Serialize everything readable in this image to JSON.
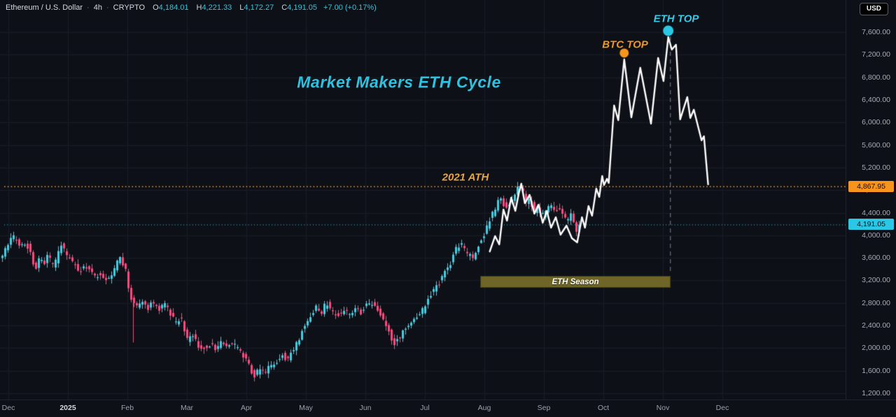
{
  "header": {
    "symbol": "Ethereum / U.S. Dollar",
    "interval": "4h",
    "exchange": "CRYPTO",
    "separator": "·",
    "ohlc": [
      {
        "k": "O",
        "v": "4,184.01"
      },
      {
        "k": "H",
        "v": "4,221.33"
      },
      {
        "k": "L",
        "v": "4,172.27"
      },
      {
        "k": "C",
        "v": "4,191.05"
      }
    ],
    "change": "+7.00 (+0.17%)",
    "currency_button": "USD"
  },
  "annotations": {
    "title": "Market Makers ETH Cycle",
    "ath_label": "2021 ATH",
    "btc_top_label": "BTC TOP",
    "eth_top_label": "ETH TOP",
    "eth_season_label": "ETH Season"
  },
  "price_axis": {
    "labels": [
      "7,600.00",
      "7,200.00",
      "6,800.00",
      "6,400.00",
      "6,000.00",
      "5,600.00",
      "5,200.00",
      "4,800.00",
      "4,400.00",
      "4,000.00",
      "3,600.00",
      "3,200.00",
      "2,800.00",
      "2,400.00",
      "2,000.00",
      "1,600.00",
      "1,200.00"
    ],
    "ath_badge": "4,867.95",
    "last_badge": "4,191.05"
  },
  "time_axis": {
    "labels": [
      "Dec",
      "2025",
      "Feb",
      "Mar",
      "Apr",
      "May",
      "Jun",
      "Jul",
      "Aug",
      "Sep",
      "Oct",
      "Nov",
      "Dec"
    ],
    "year_label_index": 1
  },
  "colors": {
    "bg": "#0d1017",
    "grid": "#171c29",
    "up": "#4cc9dc",
    "down": "#ef4f7e",
    "projection_line": "#ffffff",
    "orange": "#f7941d",
    "cyan": "#2bc8e6",
    "olive": "#6e6527",
    "dashed_vline": "#69707c"
  },
  "chart_data": {
    "type": "candlestick",
    "title": "Market Makers ETH Cycle",
    "symbol": "ETHUSD",
    "timeframe": "4h",
    "legend_position": "none",
    "grid": true,
    "y_axis": {
      "min": 1200,
      "max": 7600,
      "tick_step": 400
    },
    "x_axis": {
      "unit": "months_from_dec_2024",
      "tick_labels": [
        "Dec",
        "2025",
        "Feb",
        "Mar",
        "Apr",
        "May",
        "Jun",
        "Jul",
        "Aug",
        "Sep",
        "Oct",
        "Nov",
        "Dec"
      ]
    },
    "ath_price": 4867.95,
    "last_price": 4191.05,
    "price_path": [
      [
        -0.12,
        3564
      ],
      [
        -0.05,
        3713
      ],
      [
        0.05,
        3899
      ],
      [
        0.14,
        3986
      ],
      [
        0.21,
        3812
      ],
      [
        0.31,
        3862
      ],
      [
        0.4,
        3688
      ],
      [
        0.47,
        3367
      ],
      [
        0.54,
        3614
      ],
      [
        0.61,
        3466
      ],
      [
        0.68,
        3639
      ],
      [
        0.78,
        3416
      ],
      [
        0.89,
        3837
      ],
      [
        0.99,
        3664
      ],
      [
        1.11,
        3490
      ],
      [
        1.22,
        3367
      ],
      [
        1.34,
        3466
      ],
      [
        1.46,
        3243
      ],
      [
        1.58,
        3342
      ],
      [
        1.69,
        3169
      ],
      [
        1.79,
        3391
      ],
      [
        1.88,
        3589
      ],
      [
        1.98,
        3441
      ],
      [
        2.07,
        2871
      ],
      [
        2.16,
        2748
      ],
      [
        2.26,
        2847
      ],
      [
        2.35,
        2698
      ],
      [
        2.45,
        2822
      ],
      [
        2.54,
        2674
      ],
      [
        2.64,
        2773
      ],
      [
        2.73,
        2624
      ],
      [
        2.82,
        2451
      ],
      [
        2.92,
        2537
      ],
      [
        3.01,
        2141
      ],
      [
        3.11,
        2253
      ],
      [
        3.2,
        2055
      ],
      [
        3.29,
        1980
      ],
      [
        3.39,
        2079
      ],
      [
        3.48,
        2005
      ],
      [
        3.58,
        2079
      ],
      [
        3.67,
        2017
      ],
      [
        3.76,
        2104
      ],
      [
        3.86,
        2005
      ],
      [
        3.95,
        1881
      ],
      [
        4.05,
        1732
      ],
      [
        4.14,
        1485
      ],
      [
        4.24,
        1633
      ],
      [
        4.33,
        1571
      ],
      [
        4.42,
        1683
      ],
      [
        4.52,
        1757
      ],
      [
        4.61,
        1881
      ],
      [
        4.71,
        1806
      ],
      [
        4.8,
        1980
      ],
      [
        4.89,
        2129
      ],
      [
        4.99,
        2401
      ],
      [
        5.08,
        2574
      ],
      [
        5.18,
        2723
      ],
      [
        5.27,
        2624
      ],
      [
        5.36,
        2797
      ],
      [
        5.46,
        2648
      ],
      [
        5.55,
        2574
      ],
      [
        5.65,
        2698
      ],
      [
        5.74,
        2574
      ],
      [
        5.84,
        2723
      ],
      [
        5.93,
        2624
      ],
      [
        6.02,
        2748
      ],
      [
        6.12,
        2822
      ],
      [
        6.21,
        2674
      ],
      [
        6.31,
        2500
      ],
      [
        6.4,
        2352
      ],
      [
        6.49,
        2055
      ],
      [
        6.59,
        2203
      ],
      [
        6.68,
        2327
      ],
      [
        6.78,
        2451
      ],
      [
        6.87,
        2537
      ],
      [
        6.96,
        2624
      ],
      [
        7.06,
        2847
      ],
      [
        7.15,
        3032
      ],
      [
        7.25,
        3156
      ],
      [
        7.34,
        3317
      ],
      [
        7.44,
        3490
      ],
      [
        7.53,
        3738
      ],
      [
        7.62,
        3837
      ],
      [
        7.72,
        3688
      ],
      [
        7.81,
        3589
      ],
      [
        7.91,
        3812
      ],
      [
        8.0,
        3986
      ],
      [
        8.09,
        4233
      ],
      [
        8.19,
        4456
      ],
      [
        8.28,
        4679
      ],
      [
        8.38,
        4481
      ],
      [
        8.47,
        4605
      ],
      [
        8.56,
        4803
      ],
      [
        8.64,
        4877
      ],
      [
        8.71,
        4555
      ],
      [
        8.78,
        4654
      ],
      [
        8.85,
        4406
      ],
      [
        8.92,
        4530
      ],
      [
        8.99,
        4332
      ],
      [
        9.06,
        4456
      ],
      [
        9.13,
        4555
      ],
      [
        9.2,
        4432
      ],
      [
        9.27,
        4506
      ],
      [
        9.34,
        4357
      ],
      [
        9.41,
        4258
      ],
      [
        9.48,
        4357
      ],
      [
        9.55,
        4085
      ],
      [
        9.62,
        4196
      ]
    ],
    "long_wick": {
      "t": 2.09,
      "price": 2100
    },
    "projection": [
      [
        8.09,
        3713
      ],
      [
        8.18,
        3986
      ],
      [
        8.25,
        3837
      ],
      [
        8.32,
        4456
      ],
      [
        8.38,
        4258
      ],
      [
        8.45,
        4667
      ],
      [
        8.52,
        4432
      ],
      [
        8.58,
        4753
      ],
      [
        8.62,
        4914
      ],
      [
        8.68,
        4568
      ],
      [
        8.76,
        4716
      ],
      [
        8.84,
        4382
      ],
      [
        8.91,
        4543
      ],
      [
        8.98,
        4221
      ],
      [
        9.05,
        4432
      ],
      [
        9.12,
        4134
      ],
      [
        9.2,
        4320
      ],
      [
        9.28,
        4010
      ],
      [
        9.38,
        4171
      ],
      [
        9.47,
        3948
      ],
      [
        9.56,
        3874
      ],
      [
        9.64,
        4320
      ],
      [
        9.69,
        4134
      ],
      [
        9.75,
        4518
      ],
      [
        9.81,
        4345
      ],
      [
        9.88,
        4828
      ],
      [
        9.93,
        4679
      ],
      [
        9.98,
        5051
      ],
      [
        10.01,
        4890
      ],
      [
        10.06,
        5001
      ],
      [
        10.09,
        4927
      ],
      [
        10.18,
        6300
      ],
      [
        10.25,
        6040
      ],
      [
        10.35,
        7117
      ],
      [
        10.47,
        6090
      ],
      [
        10.62,
        6969
      ],
      [
        10.8,
        5978
      ],
      [
        10.92,
        7142
      ],
      [
        11.01,
        6733
      ],
      [
        11.09,
        7513
      ],
      [
        11.15,
        7290
      ],
      [
        11.22,
        7377
      ],
      [
        11.29,
        6053
      ],
      [
        11.41,
        6449
      ],
      [
        11.46,
        6078
      ],
      [
        11.52,
        6226
      ],
      [
        11.65,
        5681
      ],
      [
        11.69,
        5755
      ],
      [
        11.76,
        4902
      ]
    ],
    "btc_top_marker": {
      "t": 10.35,
      "price": 7230
    },
    "eth_top_marker": {
      "t": 11.09,
      "price": 7625
    },
    "eth_season_band": {
      "t_start": 7.93,
      "t_end": 11.13,
      "price_top": 3280,
      "price_bottom": 3069
    },
    "dashed_vline": {
      "t": 11.12,
      "price_top": 7526,
      "price_bottom": 3305
    }
  }
}
